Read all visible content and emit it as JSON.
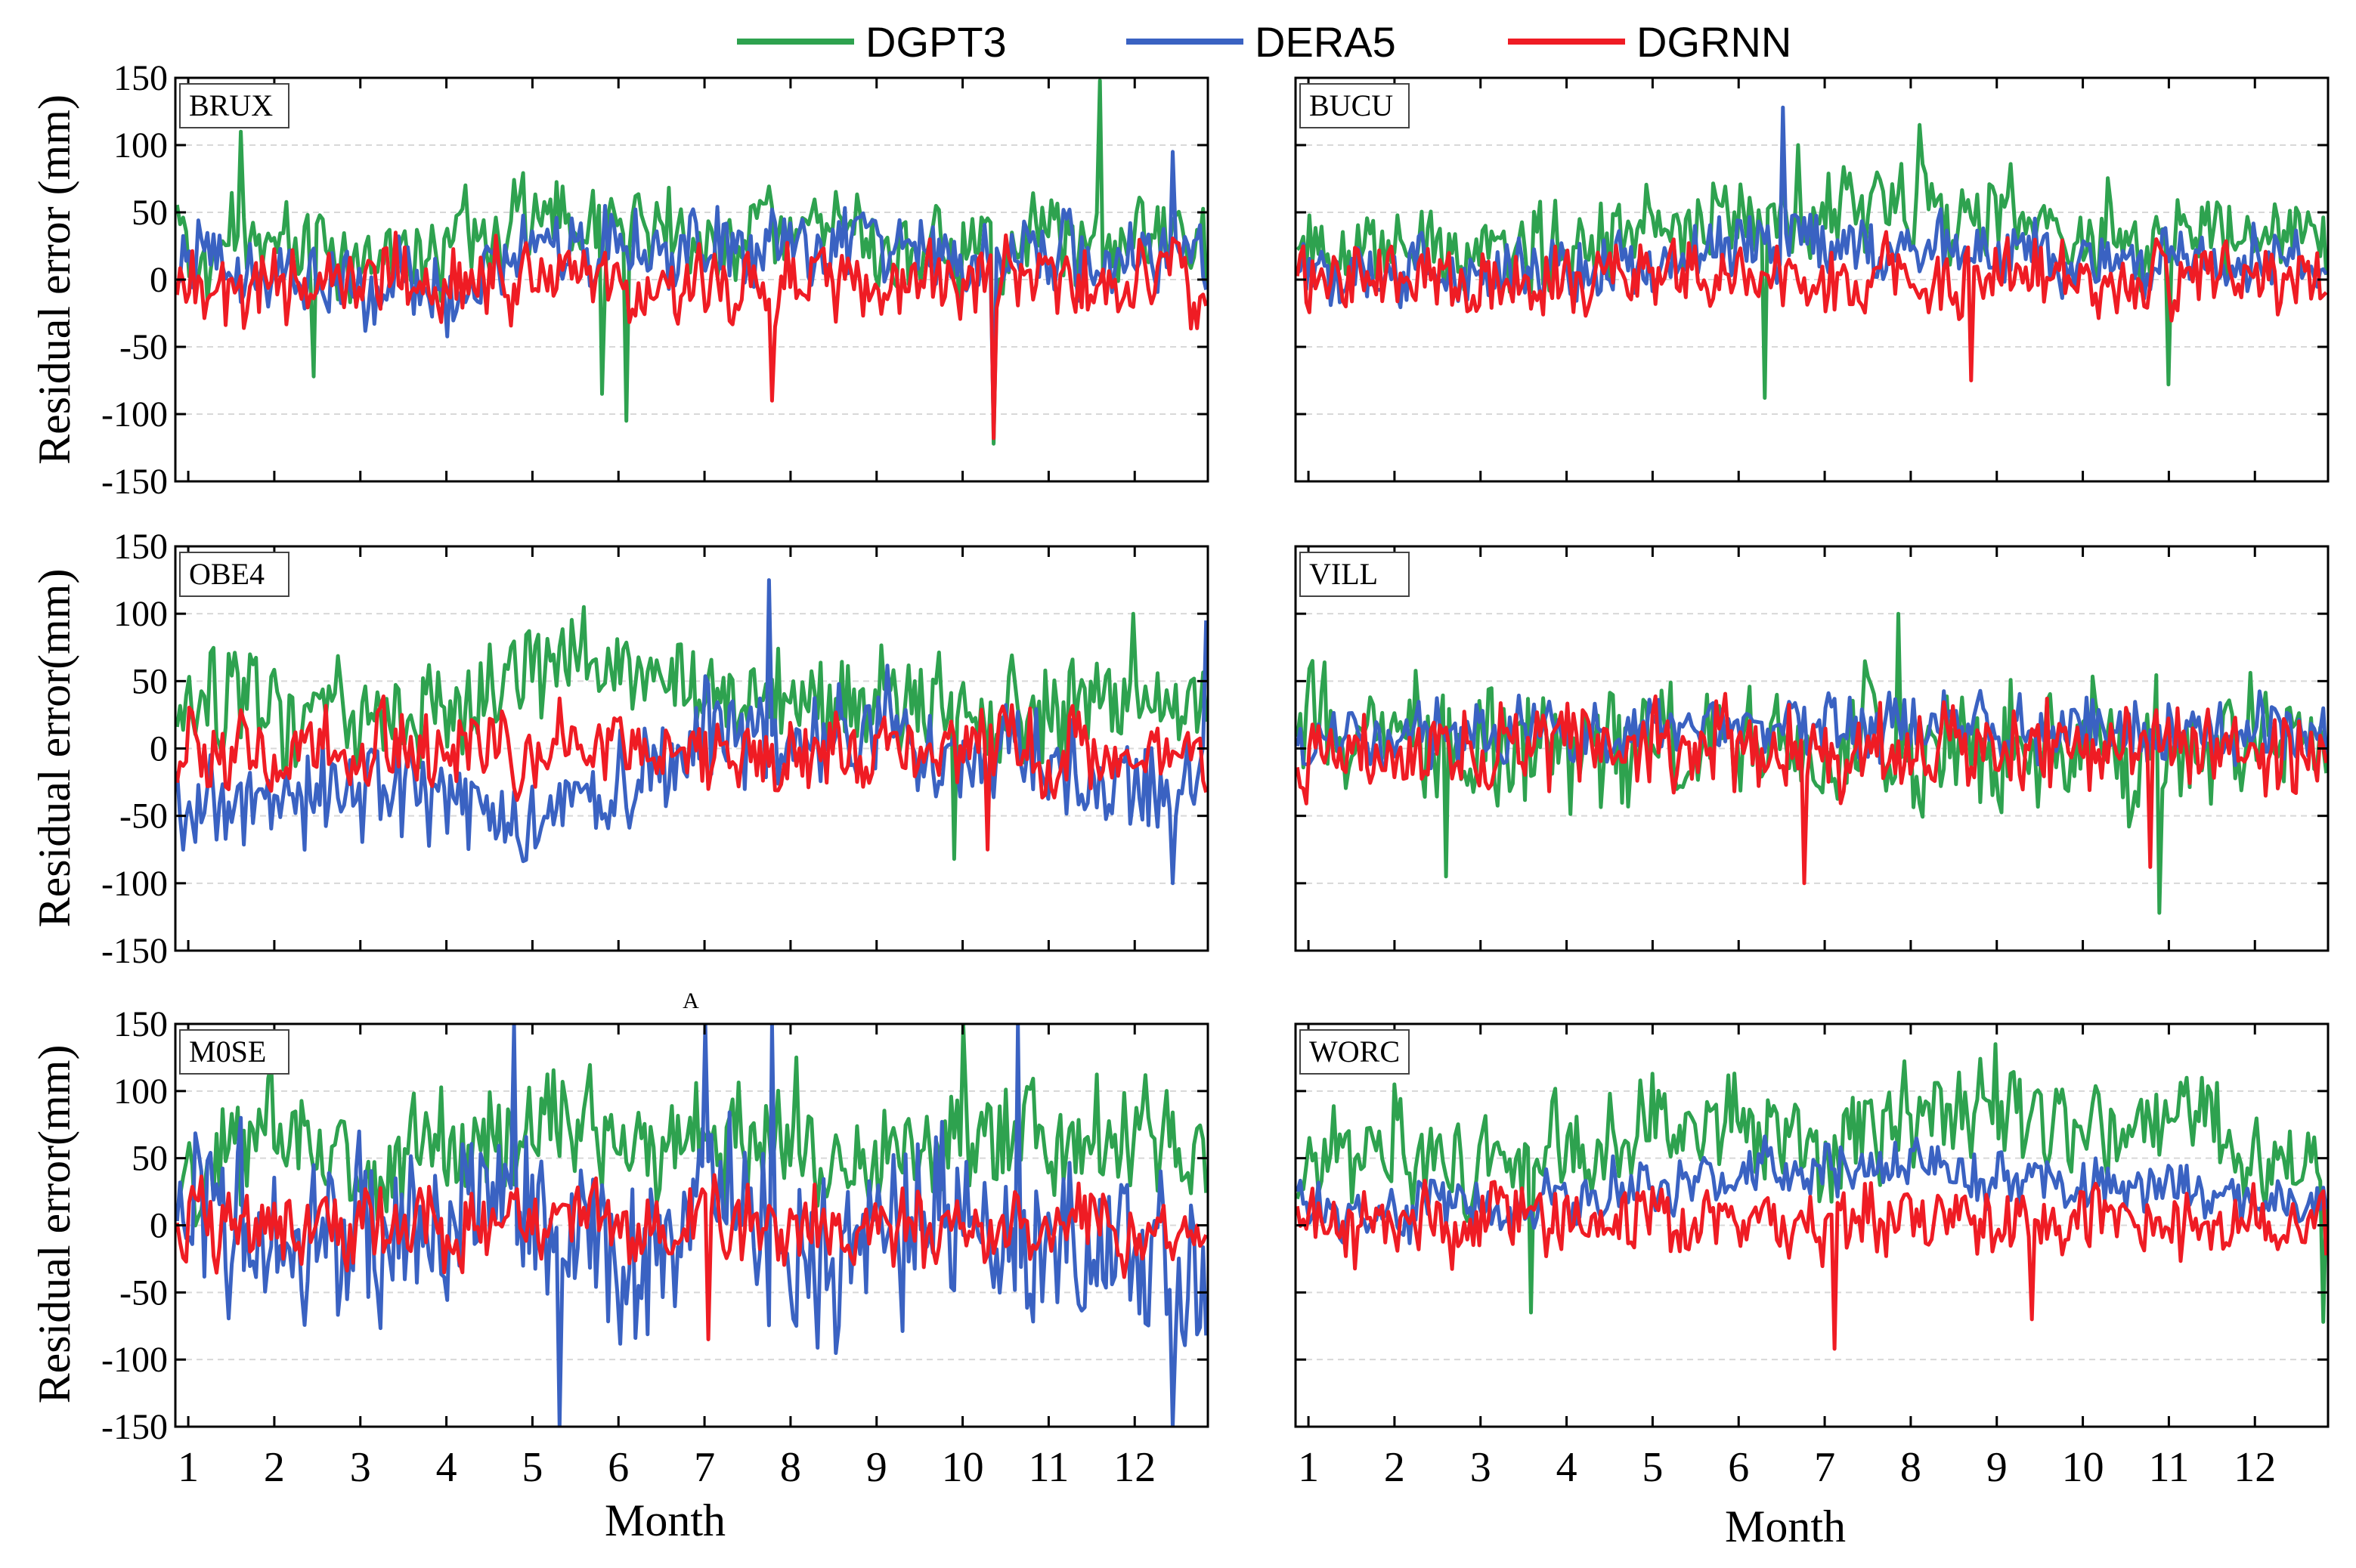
{
  "chart_data": {
    "type": "line",
    "xlabel": "Month",
    "ylabel_variants": [
      "Residual error (mm)",
      "Residual error(mm)",
      "Residual error(mm)"
    ],
    "ylim": [
      -150,
      150
    ],
    "yticks": [
      150,
      100,
      50,
      0,
      -50,
      -100,
      -150
    ],
    "xticks": [
      "1",
      "2",
      "3",
      "4",
      "5",
      "6",
      "7",
      "8",
      "9",
      "10",
      "11",
      "12"
    ],
    "xlim": [
      0.85,
      12.85
    ],
    "series": [
      {
        "name": "DGPT3",
        "color": "#2ea24f"
      },
      {
        "name": "DERA5",
        "color": "#3a62c2"
      },
      {
        "name": "DGRNN",
        "color": "#ef1c24"
      }
    ],
    "stray_label": "A",
    "panels": [
      {
        "station": "BRUX",
        "DGPT3": {
          "mean": [
            25,
            25,
            22,
            20,
            55,
            35,
            25,
            35,
            28,
            22,
            30,
            25
          ],
          "amp": 45,
          "spikes": [
            [
              1.6,
              110
            ],
            [
              11.6,
              148
            ],
            [
              6.1,
              -105
            ],
            [
              10.35,
              -122
            ],
            [
              2.45,
              -72
            ],
            [
              5.8,
              -85
            ]
          ]
        },
        "DERA5": {
          "mean": [
            10,
            8,
            2,
            -5,
            15,
            20,
            25,
            30,
            25,
            15,
            20,
            15
          ],
          "amp": 40,
          "spikes": [
            [
              12.45,
              95
            ],
            [
              10.35,
              -110
            ]
          ]
        },
        "DGRNN": {
          "mean": [
            0,
            0,
            0,
            0,
            0,
            0,
            0,
            0,
            0,
            0,
            0,
            0
          ],
          "amp": 40,
          "spikes": [
            [
              10.35,
              -118
            ],
            [
              7.8,
              -90
            ]
          ]
        }
      },
      {
        "station": "BUCU",
        "DGPT3": {
          "mean": [
            25,
            30,
            25,
            30,
            35,
            45,
            50,
            55,
            50,
            35,
            30,
            30
          ],
          "amp": 45,
          "spikes": [
            [
              6.7,
              100
            ],
            [
              8.1,
              115
            ],
            [
              6.3,
              -88
            ],
            [
              11.0,
              -78
            ]
          ]
        },
        "DERA5": {
          "mean": [
            5,
            5,
            5,
            10,
            15,
            25,
            30,
            25,
            20,
            15,
            15,
            10
          ],
          "amp": 35,
          "spikes": [
            [
              6.5,
              128
            ]
          ]
        },
        "DGRNN": {
          "mean": [
            0,
            0,
            0,
            0,
            0,
            0,
            0,
            0,
            0,
            0,
            0,
            0
          ],
          "amp": 35,
          "spikes": [
            [
              8.7,
              -75
            ]
          ]
        }
      },
      {
        "station": "OBE4",
        "DGPT3": {
          "mean": [
            35,
            30,
            25,
            30,
            55,
            60,
            40,
            35,
            30,
            30,
            30,
            35
          ],
          "amp": 50,
          "spikes": [
            [
              5.6,
              105
            ],
            [
              12.0,
              100
            ],
            [
              9.9,
              -82
            ]
          ]
        },
        "DERA5": {
          "mean": [
            -35,
            -40,
            -30,
            -35,
            -50,
            -35,
            10,
            15,
            15,
            0,
            -10,
            -35
          ],
          "amp": 50,
          "spikes": [
            [
              7.75,
              125
            ],
            [
              12.45,
              -100
            ],
            [
              12.85,
              95
            ]
          ]
        },
        "DGRNN": {
          "mean": [
            0,
            0,
            0,
            0,
            0,
            0,
            0,
            0,
            0,
            0,
            0,
            0
          ],
          "amp": 38,
          "spikes": [
            [
              10.3,
              -75
            ]
          ]
        }
      },
      {
        "station": "VILL",
        "DGPT3": {
          "mean": [
            10,
            5,
            0,
            0,
            5,
            5,
            0,
            5,
            0,
            0,
            5,
            0
          ],
          "amp": 65,
          "spikes": [
            [
              1.05,
              65
            ],
            [
              7.85,
              100
            ],
            [
              2.6,
              -95
            ],
            [
              10.9,
              -122
            ]
          ]
        },
        "DERA5": {
          "mean": [
            15,
            15,
            15,
            15,
            15,
            15,
            15,
            15,
            15,
            15,
            15,
            15
          ],
          "amp": 35,
          "spikes": []
        },
        "DGRNN": {
          "mean": [
            0,
            0,
            0,
            0,
            0,
            0,
            0,
            0,
            0,
            0,
            0,
            0
          ],
          "amp": 45,
          "spikes": [
            [
              6.75,
              -100
            ],
            [
              10.8,
              -88
            ]
          ]
        }
      },
      {
        "station": "M0SE",
        "DGPT3": {
          "mean": [
            55,
            55,
            50,
            60,
            65,
            50,
            50,
            60,
            55,
            60,
            60,
            70
          ],
          "amp": 60,
          "spikes": [
            [
              10.0,
              150
            ],
            [
              8.05,
              125
            ]
          ]
        },
        "DERA5": {
          "mean": [
            5,
            -10,
            -25,
            -5,
            10,
            -40,
            10,
            -20,
            -10,
            5,
            -25,
            -30
          ],
          "amp": 90,
          "spikes": [
            [
              4.8,
              150
            ],
            [
              5.3,
              -150
            ],
            [
              7.0,
              150
            ],
            [
              7.8,
              150
            ],
            [
              10.65,
              150
            ],
            [
              12.45,
              -150
            ]
          ]
        },
        "DGRNN": {
          "mean": [
            0,
            0,
            0,
            0,
            0,
            0,
            0,
            0,
            0,
            0,
            0,
            0
          ],
          "amp": 40,
          "spikes": [
            [
              7.05,
              -85
            ]
          ]
        }
      },
      {
        "station": "WORC",
        "DGPT3": {
          "mean": [
            40,
            55,
            35,
            60,
            85,
            70,
            55,
            85,
            80,
            80,
            75,
            50
          ],
          "amp": 50,
          "spikes": [
            [
              2.0,
              105
            ],
            [
              9.0,
              135
            ],
            [
              3.6,
              -65
            ],
            [
              12.8,
              -72
            ]
          ]
        },
        "DERA5": {
          "mean": [
            15,
            15,
            15,
            20,
            30,
            35,
            40,
            40,
            35,
            30,
            30,
            20
          ],
          "amp": 30,
          "spikes": []
        },
        "DGRNN": {
          "mean": [
            0,
            0,
            0,
            0,
            0,
            0,
            0,
            0,
            0,
            0,
            0,
            0
          ],
          "amp": 35,
          "spikes": [
            [
              7.1,
              -92
            ],
            [
              9.4,
              -70
            ]
          ]
        }
      }
    ]
  }
}
